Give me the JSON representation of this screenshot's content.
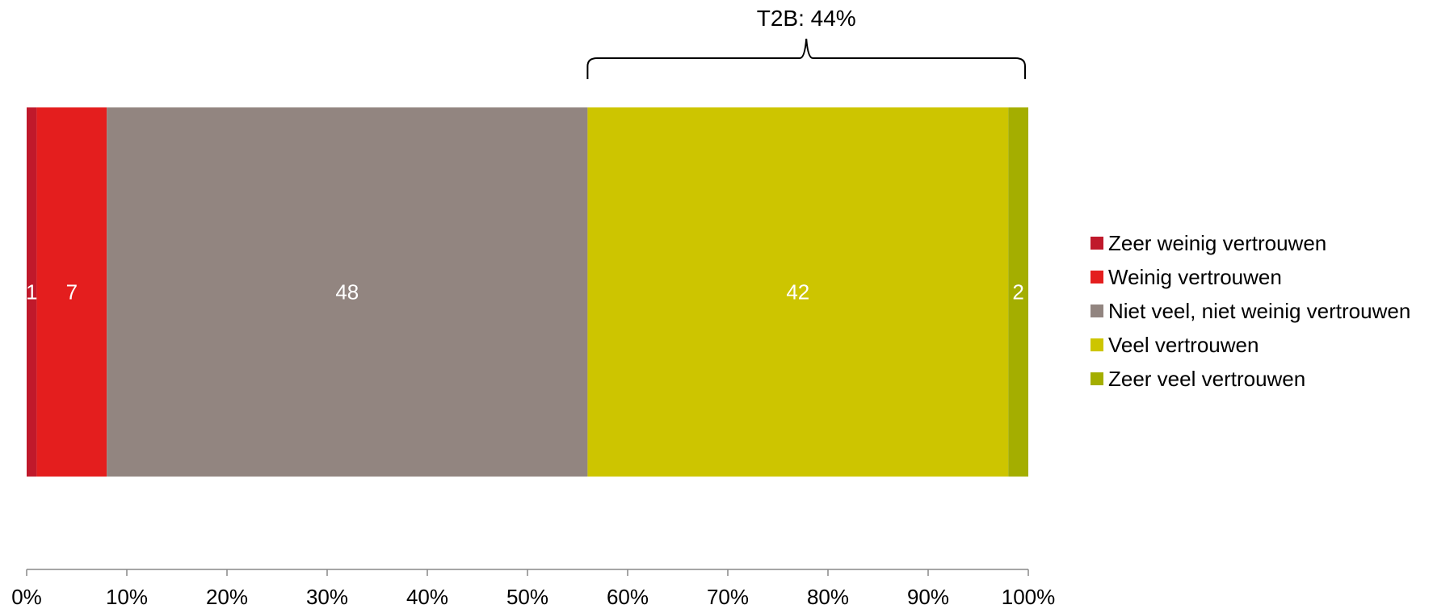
{
  "chart_data": {
    "type": "bar",
    "orientation": "horizontal-stacked-100",
    "categories": [
      ""
    ],
    "series": [
      {
        "name": "Zeer weinig vertrouwen",
        "values": [
          1
        ],
        "label": "1",
        "color": "#C0192B"
      },
      {
        "name": "Weinig vertrouwen",
        "values": [
          7
        ],
        "label": "7",
        "color": "#E41E1E"
      },
      {
        "name": "Niet veel, niet weinig vertrouwen",
        "values": [
          48
        ],
        "label": "48",
        "color": "#928580"
      },
      {
        "name": "Veel vertrouwen",
        "values": [
          42
        ],
        "label": "42",
        "color": "#CDC500"
      },
      {
        "name": "Zeer veel vertrouwen",
        "values": [
          2
        ],
        "label": "2",
        "color": "#A4AE00"
      }
    ],
    "xlim": [
      0,
      100
    ],
    "x_ticks": [
      "0%",
      "10%",
      "20%",
      "30%",
      "40%",
      "50%",
      "60%",
      "70%",
      "80%",
      "90%",
      "100%"
    ],
    "annotation": {
      "text": "T2B: 44%",
      "from_series": 3,
      "to_series": 4
    },
    "legend_position": "right",
    "grid": false
  }
}
